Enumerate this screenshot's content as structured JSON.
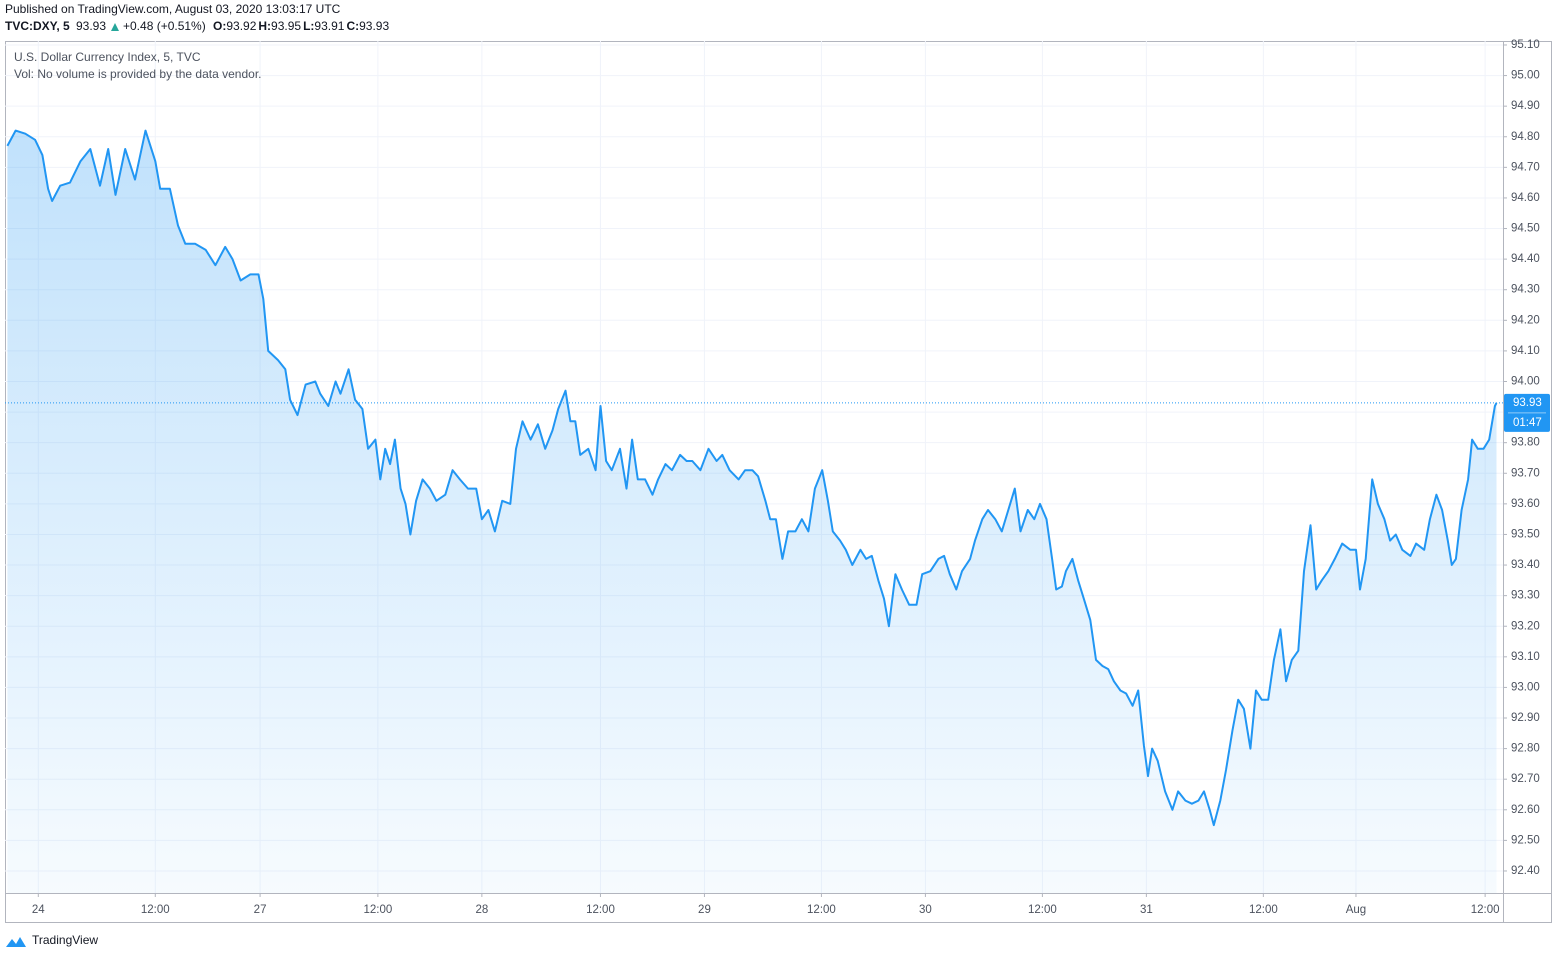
{
  "header": {
    "published": "Published on TradingView.com, August 03, 2020 13:03:17 UTC",
    "symbol": "TVC:DXY, 5",
    "last": 93.93,
    "change": "+0.48 (+0.51%)",
    "ohlc": [
      {
        "label": "O:",
        "value": 93.92
      },
      {
        "label": "H:",
        "value": 93.95
      },
      {
        "label": "L:",
        "value": 93.91
      },
      {
        "label": "C:",
        "value": 93.93
      }
    ],
    "up_color": "#26a69a"
  },
  "footer": {
    "brand": "TradingView"
  },
  "chart_data": {
    "type": "area",
    "note": "Vol: No volume is provided by the data vendor.",
    "price_label": 93.93,
    "countdown": "01:47",
    "grid": true,
    "xlim": [
      -41,
      1803
    ],
    "ylim": [
      92.328,
      95.113
    ],
    "xticks": [
      {
        "value": 0,
        "label": "24"
      },
      {
        "value": 144,
        "label": "12:00"
      },
      {
        "value": 273,
        "label": "27"
      },
      {
        "value": 418,
        "label": "12:00"
      },
      {
        "value": 546,
        "label": "28"
      },
      {
        "value": 692,
        "label": "12:00"
      },
      {
        "value": 820,
        "label": "29"
      },
      {
        "value": 964,
        "label": "12:00"
      },
      {
        "value": 1092,
        "label": "30"
      },
      {
        "value": 1236,
        "label": "12:00"
      },
      {
        "value": 1364,
        "label": "31"
      },
      {
        "value": 1508,
        "label": "12:00"
      },
      {
        "value": 1622,
        "label": "Aug"
      },
      {
        "value": 1781,
        "label": "12:00"
      }
    ],
    "yticks": [
      {
        "value": 92.4,
        "label": "92.40"
      },
      {
        "value": 92.5,
        "label": "92.50"
      },
      {
        "value": 92.6,
        "label": "92.60"
      },
      {
        "value": 92.7,
        "label": "92.70"
      },
      {
        "value": 92.8,
        "label": "92.80"
      },
      {
        "value": 92.9,
        "label": "92.90"
      },
      {
        "value": 93.0,
        "label": "93.00"
      },
      {
        "value": 93.1,
        "label": "93.10"
      },
      {
        "value": 93.2,
        "label": "93.20"
      },
      {
        "value": 93.3,
        "label": "93.30"
      },
      {
        "value": 93.4,
        "label": "93.40"
      },
      {
        "value": 93.5,
        "label": "93.50"
      },
      {
        "value": 93.6,
        "label": "93.60"
      },
      {
        "value": 93.7,
        "label": "93.70"
      },
      {
        "value": 93.8,
        "label": "93.80"
      },
      {
        "value": 93.9,
        "label": "93.90"
      },
      {
        "value": 94.0,
        "label": "94.00"
      },
      {
        "value": 94.1,
        "label": "94.10"
      },
      {
        "value": 94.2,
        "label": "94.20"
      },
      {
        "value": 94.3,
        "label": "94.30"
      },
      {
        "value": 94.4,
        "label": "94.40"
      },
      {
        "value": 94.5,
        "label": "94.50"
      },
      {
        "value": 94.6,
        "label": "94.60"
      },
      {
        "value": 94.7,
        "label": "94.70"
      },
      {
        "value": 94.8,
        "label": "94.80"
      },
      {
        "value": 94.9,
        "label": "94.90"
      },
      {
        "value": 95.0,
        "label": "95.00"
      },
      {
        "value": 95.1,
        "label": "95.10"
      }
    ],
    "x": [
      -38,
      -28,
      -16,
      -4,
      5,
      12,
      17,
      27,
      39,
      52,
      64,
      76,
      86,
      95,
      107,
      119,
      132,
      144,
      150,
      162,
      172,
      181,
      193,
      206,
      218,
      230,
      239,
      249,
      261,
      271,
      277,
      283,
      295,
      304,
      310,
      319,
      329,
      341,
      347,
      357,
      366,
      372,
      382,
      390,
      399,
      406,
      415,
      421,
      427,
      433,
      439,
      446,
      452,
      458,
      465,
      473,
      482,
      490,
      501,
      510,
      519,
      529,
      539,
      546,
      554,
      562,
      571,
      581,
      588,
      596,
      606,
      615,
      624,
      633,
      640,
      649,
      655,
      661,
      667,
      677,
      686,
      692,
      699,
      706,
      716,
      724,
      731,
      738,
      747,
      756,
      763,
      772,
      780,
      790,
      798,
      805,
      815,
      825,
      835,
      842,
      851,
      862,
      870,
      879,
      886,
      895,
      901,
      908,
      916,
      923,
      932,
      940,
      948,
      956,
      965,
      972,
      978,
      987,
      994,
      1002,
      1012,
      1019,
      1026,
      1034,
      1041,
      1047,
      1055,
      1063,
      1072,
      1081,
      1088,
      1098,
      1108,
      1115,
      1122,
      1130,
      1137,
      1147,
      1153,
      1162,
      1169,
      1178,
      1186,
      1194,
      1202,
      1209,
      1218,
      1226,
      1233,
      1241,
      1248,
      1253,
      1260,
      1265,
      1273,
      1280,
      1287,
      1295,
      1302,
      1310,
      1317,
      1324,
      1332,
      1339,
      1347,
      1354,
      1361,
      1366,
      1371,
      1378,
      1387,
      1396,
      1403,
      1412,
      1420,
      1428,
      1435,
      1442,
      1447,
      1455,
      1462,
      1470,
      1477,
      1484,
      1492,
      1499,
      1506,
      1514,
      1521,
      1529,
      1536,
      1543,
      1551,
      1558,
      1566,
      1573,
      1580,
      1588,
      1596,
      1605,
      1615,
      1622,
      1627,
      1634,
      1642,
      1649,
      1657,
      1664,
      1671,
      1679,
      1689,
      1696,
      1706,
      1713,
      1721,
      1728,
      1735,
      1740,
      1745,
      1752,
      1760,
      1765,
      1772,
      1779,
      1786,
      1793,
      1795
    ],
    "series": [
      {
        "name": "U.S. Dollar Currency Index, 5, TVC",
        "color": "#2196f3",
        "values": [
          94.77,
          94.82,
          94.81,
          94.79,
          94.74,
          94.63,
          94.59,
          94.64,
          94.65,
          94.72,
          94.76,
          94.64,
          94.76,
          94.61,
          94.76,
          94.66,
          94.82,
          94.72,
          94.63,
          94.63,
          94.51,
          94.45,
          94.45,
          94.43,
          94.38,
          94.44,
          94.4,
          94.33,
          94.35,
          94.35,
          94.27,
          94.1,
          94.07,
          94.04,
          93.94,
          93.89,
          93.99,
          94.0,
          93.96,
          93.92,
          94.0,
          93.96,
          94.04,
          93.94,
          93.91,
          93.78,
          93.81,
          93.68,
          93.78,
          93.73,
          93.81,
          93.65,
          93.6,
          93.5,
          93.61,
          93.68,
          93.65,
          93.61,
          93.63,
          93.71,
          93.68,
          93.65,
          93.65,
          93.55,
          93.58,
          93.51,
          93.61,
          93.6,
          93.78,
          93.87,
          93.81,
          93.86,
          93.78,
          93.84,
          93.91,
          93.97,
          93.87,
          93.87,
          93.76,
          93.78,
          93.71,
          93.92,
          93.74,
          93.71,
          93.78,
          93.65,
          93.81,
          93.68,
          93.68,
          93.63,
          93.68,
          93.73,
          93.71,
          93.76,
          93.74,
          93.74,
          93.71,
          93.78,
          93.74,
          93.76,
          93.71,
          93.68,
          93.71,
          93.71,
          93.69,
          93.61,
          93.55,
          93.55,
          93.42,
          93.51,
          93.51,
          93.55,
          93.51,
          93.65,
          93.71,
          93.61,
          93.51,
          93.48,
          93.45,
          93.4,
          93.45,
          93.42,
          93.43,
          93.35,
          93.29,
          93.2,
          93.37,
          93.32,
          93.27,
          93.27,
          93.37,
          93.38,
          93.42,
          93.43,
          93.37,
          93.32,
          93.38,
          93.42,
          93.48,
          93.55,
          93.58,
          93.55,
          93.51,
          93.58,
          93.65,
          93.51,
          93.58,
          93.55,
          93.6,
          93.55,
          93.42,
          93.32,
          93.33,
          93.38,
          93.42,
          93.35,
          93.29,
          93.22,
          93.09,
          93.07,
          93.06,
          93.02,
          92.99,
          92.98,
          92.94,
          92.99,
          92.81,
          92.71,
          92.8,
          92.76,
          92.66,
          92.6,
          92.66,
          92.63,
          92.62,
          92.63,
          92.66,
          92.6,
          92.55,
          92.63,
          92.73,
          92.86,
          92.96,
          92.93,
          92.8,
          92.99,
          92.96,
          92.96,
          93.09,
          93.19,
          93.02,
          93.09,
          93.12,
          93.38,
          93.53,
          93.32,
          93.35,
          93.38,
          93.42,
          93.47,
          93.45,
          93.45,
          93.32,
          93.42,
          93.68,
          93.6,
          93.55,
          93.48,
          93.5,
          93.45,
          93.43,
          93.47,
          93.45,
          93.55,
          93.63,
          93.58,
          93.48,
          93.4,
          93.42,
          93.58,
          93.68,
          93.81,
          93.78,
          93.78,
          93.81,
          93.92,
          93.93
        ]
      }
    ]
  }
}
